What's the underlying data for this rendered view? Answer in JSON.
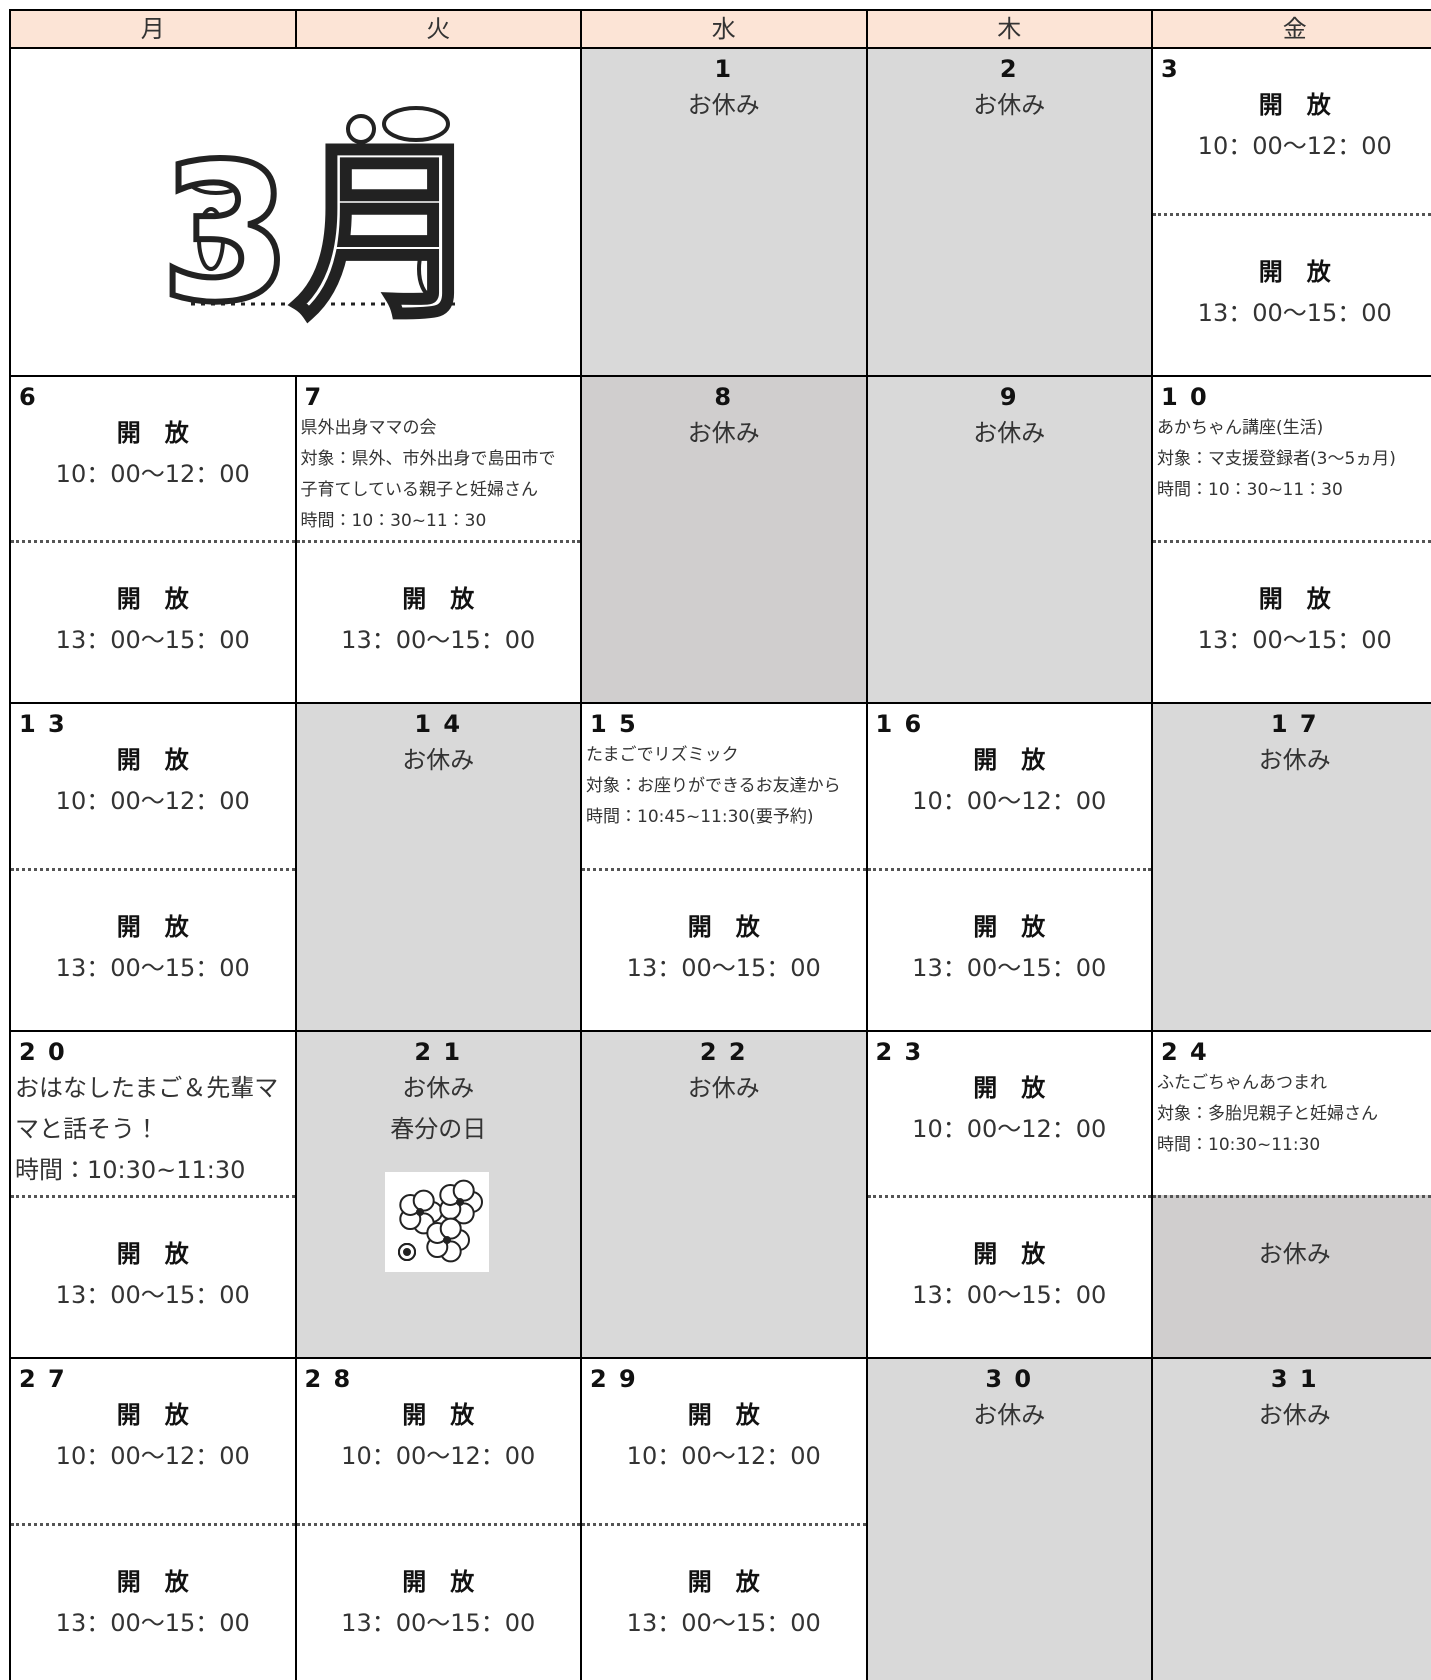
{
  "header": {
    "days": [
      "月",
      "火",
      "水",
      "木",
      "金"
    ]
  },
  "art": {
    "month": "3月"
  },
  "weeks": [
    [
      null,
      null,
      {
        "day": "1",
        "top": [
          "お休み"
        ],
        "bottom": []
      },
      {
        "day": "2",
        "top": [
          "お休み"
        ],
        "bottom": []
      },
      {
        "day": "3",
        "top": [
          "開　放",
          "10：00〜12：00"
        ],
        "bottom": [
          "開　放",
          "13：00〜15：00"
        ]
      }
    ],
    [
      {
        "day": "6",
        "top": [
          "開　放",
          "10：00〜12：00"
        ],
        "bottom": [
          "開　放",
          "13：00〜15：00"
        ]
      },
      {
        "day": "7",
        "top": [
          "県外出身ママの会",
          "対象：県外、市外出身で島田市で",
          "子育てしている親子と妊婦さん",
          "時間：10：30~11：30"
        ],
        "bottom": [
          "開　放",
          "13：00〜15：00"
        ]
      },
      {
        "day": "8",
        "top": [
          "お休み"
        ],
        "bottom": []
      },
      {
        "day": "9",
        "top": [
          "お休み"
        ],
        "bottom": []
      },
      {
        "day": "1 0",
        "top": [
          "あかちゃん講座(生活)",
          "対象：マ支援登録者(3～5ヵ月)",
          "時間：10：30~11：30"
        ],
        "bottom": [
          "開　放",
          "13：00〜15：00"
        ]
      }
    ],
    [
      {
        "day": "1 3",
        "top": [
          "開　放",
          "10：00〜12：00"
        ],
        "bottom": [
          "開　放",
          "13：00〜15：00"
        ]
      },
      {
        "day": "1 4",
        "top": [
          "お休み"
        ],
        "bottom": []
      },
      {
        "day": "1 5",
        "top": [
          "たまごでリズミック",
          "対象：お座りができるお友達から",
          "時間：10:45~11:30(要予約)"
        ],
        "bottom": [
          "開　放",
          "13：00〜15：00"
        ]
      },
      {
        "day": "1 6",
        "top": [
          "開　放",
          "10：00〜12：00"
        ],
        "bottom": [
          "開　放",
          "13：00〜15：00"
        ]
      },
      {
        "day": "1 7",
        "top": [
          "お休み"
        ],
        "bottom": []
      }
    ],
    [
      {
        "day": "2 0",
        "top": [
          "おはなしたまご＆先輩マ",
          "マと話そう！",
          "時間：10:30~11:30"
        ],
        "bottom": [
          "開　放",
          "13：00〜15：00"
        ]
      },
      {
        "day": "2 1",
        "top": [
          "お休み",
          "春分の日"
        ],
        "bottom": []
      },
      {
        "day": "2 2",
        "top": [
          "お休み"
        ],
        "bottom": []
      },
      {
        "day": "2 3",
        "top": [
          "開　放",
          "10：00〜12：00"
        ],
        "bottom": [
          "開　放",
          "13：00〜15：00"
        ]
      },
      {
        "day": "2 4",
        "top": [
          "ふたごちゃんあつまれ",
          "対象：多胎児親子と妊婦さん",
          "時間：10:30~11:30"
        ],
        "bottom": [
          "お休み"
        ]
      }
    ],
    [
      {
        "day": "2 7",
        "top": [
          "開　放",
          "10：00〜12：00"
        ],
        "bottom": [
          "開　放",
          "13：00〜15：00"
        ]
      },
      {
        "day": "2 8",
        "top": [
          "開　放",
          "10：00〜12：00"
        ],
        "bottom": [
          "開　放",
          "13：00〜15：00"
        ]
      },
      {
        "day": "2 9",
        "top": [
          "開　放",
          "10：00〜12：00"
        ],
        "bottom": [
          "開　放",
          "13：00〜15：00"
        ]
      },
      {
        "day": "3 0",
        "top": [
          "お休み"
        ],
        "bottom": []
      },
      {
        "day": "3 1",
        "top": [
          "お休み"
        ],
        "bottom": []
      }
    ]
  ]
}
